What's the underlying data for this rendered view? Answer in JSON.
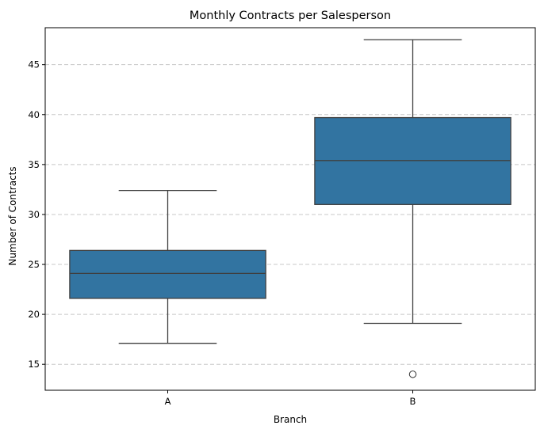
{
  "chart_data": {
    "type": "box",
    "title": "Monthly Contracts per Salesperson",
    "xlabel": "Branch",
    "ylabel": "Number of Contracts",
    "categories": [
      "A",
      "B"
    ],
    "boxes": [
      {
        "category": "A",
        "whisker_low": 17.1,
        "q1": 21.6,
        "median": 24.1,
        "q3": 26.4,
        "whisker_high": 32.4,
        "outliers": []
      },
      {
        "category": "B",
        "whisker_low": 19.1,
        "q1": 31.0,
        "median": 35.4,
        "q3": 39.7,
        "whisker_high": 47.5,
        "outliers": [
          14.0
        ]
      }
    ],
    "ylim": [
      12.4,
      48.7
    ],
    "yticks": [
      15,
      20,
      25,
      30,
      35,
      40,
      45
    ],
    "grid": {
      "axis": "y",
      "style": "dashed"
    },
    "colors": {
      "box": "#3274a1",
      "line": "#3f3f3f",
      "grid": "#c8c8c8"
    }
  }
}
